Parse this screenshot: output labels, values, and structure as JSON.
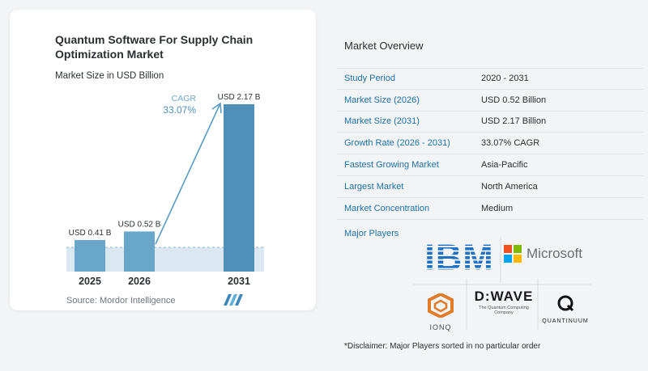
{
  "chart_data": {
    "type": "bar",
    "title": "Quantum Software For Supply Chain Optimization Market",
    "subtitle": "Market Size in USD Billion",
    "categories": [
      "2025",
      "2026",
      "2031"
    ],
    "values": [
      0.41,
      0.52,
      2.17
    ],
    "data_labels": [
      "USD 0.41 B",
      "USD 0.52 B",
      "USD 2.17 B"
    ],
    "annotation": {
      "label": "CAGR",
      "value": "33.07%"
    },
    "ylim": [
      0,
      2.17
    ],
    "colors": {
      "bar": "#6aa6c9",
      "bar_highlight": "#4f8fb8",
      "arrow": "#5a9bc4",
      "band": "#dbe8f1"
    }
  },
  "source": "Source: Mordor Intelligence",
  "overview": {
    "title": "Market Overview",
    "rows": [
      {
        "label": "Study Period",
        "value": "2020 - 2031"
      },
      {
        "label": "Market Size (2026)",
        "value": "USD 0.52 Billion"
      },
      {
        "label": "Market Size (2031)",
        "value": "USD 2.17 Billion"
      },
      {
        "label": "Growth Rate (2026 - 2031)",
        "value": "33.07% CAGR"
      },
      {
        "label": "Fastest Growing Market",
        "value": "Asia-Pacific"
      },
      {
        "label": "Largest Market",
        "value": "North America"
      },
      {
        "label": "Market Concentration",
        "value": "Medium"
      }
    ]
  },
  "major_players": {
    "title": "Major Players",
    "logos": {
      "ibm": "IBM",
      "microsoft": "Microsoft",
      "ionq": "IONQ",
      "dwave": "D:WAVE",
      "dwave_tagline": "The Quantum Computing Company",
      "quantinuum": "QUANTINUUM"
    }
  },
  "disclaimer": "*Disclaimer: Major Players sorted in no particular order"
}
